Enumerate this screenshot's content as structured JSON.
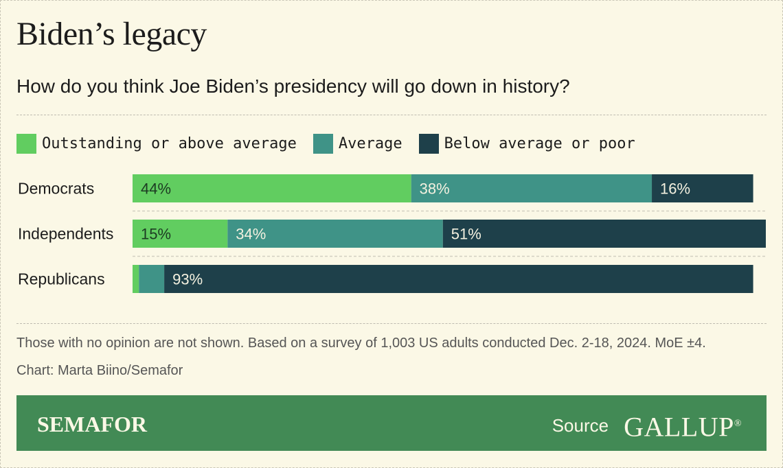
{
  "title": "Biden’s legacy",
  "subtitle": "How do you think Joe Biden’s presidency will go down in history?",
  "colors": {
    "outstanding": "#61cd60",
    "average": "#3f9387",
    "below": "#1e404a",
    "footer": "#428a55",
    "background": "#fbf8e6"
  },
  "chart_data": {
    "type": "bar",
    "orientation": "horizontal",
    "stacked": true,
    "categories": [
      "Democrats",
      "Independents",
      "Republicans"
    ],
    "series": [
      {
        "name": "Outstanding or above average",
        "values": [
          44,
          15,
          1
        ]
      },
      {
        "name": "Average",
        "values": [
          38,
          34,
          4
        ]
      },
      {
        "name": "Below average or poor",
        "values": [
          16,
          51,
          93
        ]
      }
    ],
    "labels": [
      [
        "44%",
        "38%",
        "16%"
      ],
      [
        "15%",
        "34%",
        "51%"
      ],
      [
        "",
        "",
        "93%"
      ]
    ],
    "xlim": [
      0,
      100
    ],
    "grid": false,
    "legend": "top-left"
  },
  "notes": "Those with no opinion are not shown. Based on a survey of 1,003 US adults conducted Dec. 2-18, 2024. MoE ±4.",
  "credit": "Chart: Marta Biino/Semafor",
  "footer": {
    "brand": "SEMAFOR",
    "source_label": "Source",
    "source_name": "GALLUP",
    "source_mark": "®"
  }
}
